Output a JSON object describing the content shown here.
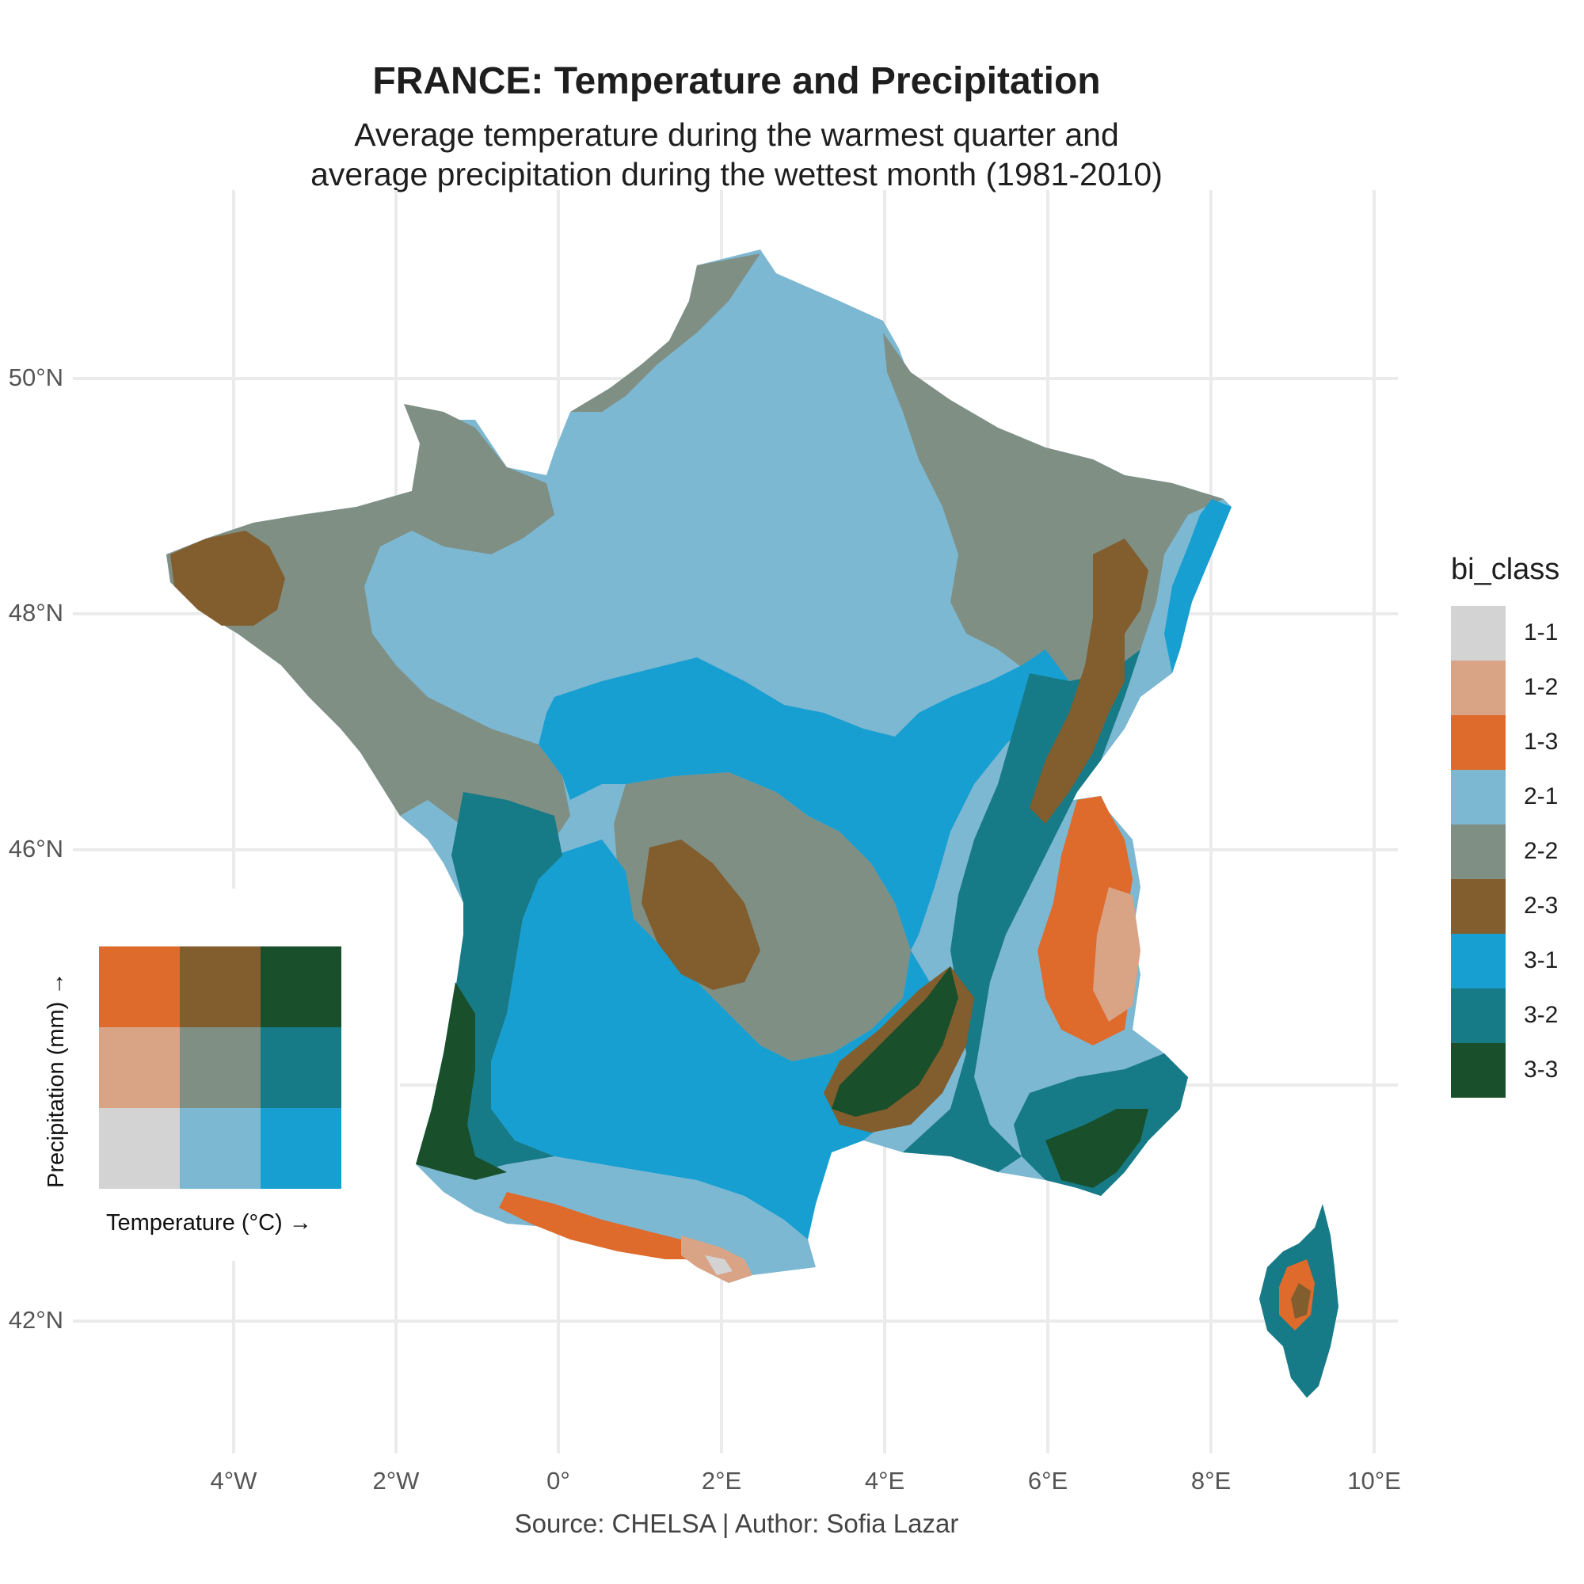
{
  "title": "FRANCE: Temperature and Precipitation",
  "subtitle_line1": "Average temperature during the warmest quarter and",
  "subtitle_line2": "average precipitation during the wettest month (1981-2010)",
  "caption": "Source: CHELSA | Author: Sofia Lazar",
  "axes": {
    "lat_labels": [
      "50°N",
      "48°N",
      "46°N",
      "42°N"
    ],
    "lon_labels": [
      "4°W",
      "2°W",
      "0°",
      "2°E",
      "4°E",
      "6°E",
      "8°E",
      "10°E"
    ],
    "grid": true
  },
  "legend": {
    "title": "bi_class",
    "items": [
      {
        "label": "1-1",
        "color": "#d3d3d3"
      },
      {
        "label": "1-2",
        "color": "#d9a386"
      },
      {
        "label": "1-3",
        "color": "#de6b2c"
      },
      {
        "label": "2-1",
        "color": "#7db8d2"
      },
      {
        "label": "2-2",
        "color": "#7f8f84"
      },
      {
        "label": "2-3",
        "color": "#825d2e"
      },
      {
        "label": "3-1",
        "color": "#189fd2"
      },
      {
        "label": "3-2",
        "color": "#177a87"
      },
      {
        "label": "3-3",
        "color": "#194f2b"
      }
    ]
  },
  "bivariate_key": {
    "x_label": "Temperature (°C) →",
    "y_label": "Precipitation (mm) →"
  },
  "map": {
    "region": "France",
    "colors": {
      "pale_blue": "#7db8d2",
      "grey_green": "#7f8f84",
      "brown": "#825d2e",
      "bright_blue": "#189fd2",
      "teal": "#177a87",
      "dark_green": "#194f2b",
      "orange": "#de6b2c",
      "peach": "#d9a386",
      "light_grey": "#d3d3d3"
    }
  }
}
